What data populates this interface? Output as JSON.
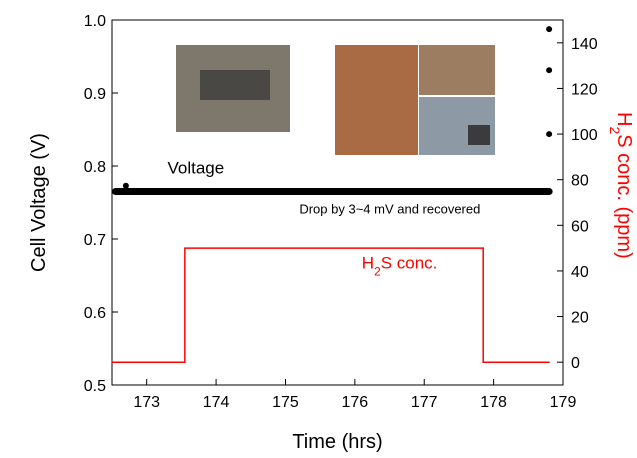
{
  "chart_data": {
    "type": "line",
    "xlabel": "Time (hrs)",
    "ylabel": "Cell Voltage (V)",
    "y2label": {
      "parts": [
        "H",
        "2",
        "S conc. (ppm)"
      ]
    },
    "xlim": [
      172.5,
      179
    ],
    "xticks": [
      173,
      174,
      175,
      176,
      177,
      178,
      179
    ],
    "ylim": [
      0.5,
      1.0
    ],
    "yticks": [
      {
        "value": 0.5,
        "label": "0.5"
      },
      {
        "value": 0.6,
        "label": "0.6"
      },
      {
        "value": 0.7,
        "label": "0.7"
      },
      {
        "value": 0.8,
        "label": "0.8"
      },
      {
        "value": 0.9,
        "label": "0.9"
      },
      {
        "value": 1.0,
        "label": "1.0"
      }
    ],
    "y2lim": [
      -10,
      150
    ],
    "y2ticks": [
      0,
      20,
      40,
      60,
      80,
      100,
      120,
      140
    ],
    "y2color": "#ff0000",
    "annotations": [
      {
        "text": "Voltage",
        "x": 173.3,
        "y": 0.79
      },
      {
        "text": "Drop by 3~4 mV and recovered",
        "x": 175.2,
        "y": 0.735
      },
      {
        "parts": [
          "H",
          "2",
          "S conc."
        ],
        "x": 176.1,
        "y2": 41,
        "color": "#ff0000"
      }
    ],
    "series": [
      {
        "color": "#000000",
        "width": 7,
        "x": [
          172.55,
          178.8
        ],
        "values": [
          0.765,
          0.765
        ]
      },
      {
        "color": "#000000",
        "marker": true,
        "x": [
          172.7
        ],
        "values": [
          0.773
        ]
      },
      {
        "color": "#ff0000",
        "width": 1.5,
        "axis": "y2",
        "x": [
          172.5,
          173.55,
          173.55,
          177.85,
          177.85,
          178.8
        ],
        "values": [
          0,
          0,
          50,
          50,
          0,
          0
        ]
      },
      {
        "color": "#000000",
        "marker": true,
        "axis": "y2",
        "x": [
          178.8,
          178.8,
          178.8
        ],
        "values": [
          146,
          128,
          100
        ]
      }
    ]
  }
}
